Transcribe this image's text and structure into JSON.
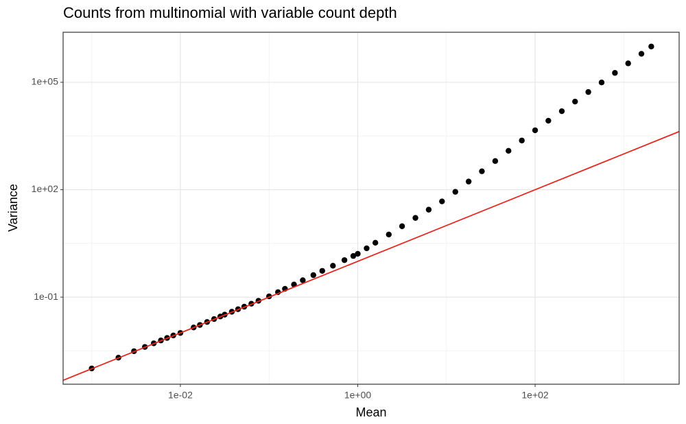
{
  "chart_data": {
    "type": "scatter",
    "title": "Counts from multinomial with variable count depth",
    "x_label": "Mean",
    "y_label": "Variance",
    "log_x": true,
    "log_y": true,
    "grid": true,
    "color": "#000000",
    "xlim": [
      0.000476,
      4207
    ],
    "ylim": [
      0.00037,
      2500000
    ],
    "xticks": [
      {
        "value": 0.01,
        "label": "1e-02"
      },
      {
        "value": 1,
        "label": "1e+00"
      },
      {
        "value": 100,
        "label": "1e+02"
      }
    ],
    "yticks": [
      {
        "value": 0.1,
        "label": "1e-01"
      },
      {
        "value": 100,
        "label": "1e+02"
      },
      {
        "value": 100000,
        "label": "1e+05"
      }
    ],
    "reference_line": {
      "slope": 1,
      "intercept": 0,
      "color": "#e8251f"
    },
    "x": [
      0.001,
      0.002,
      0.003,
      0.00398,
      0.00501,
      0.00603,
      0.00708,
      0.00832,
      0.01,
      0.0141,
      0.0166,
      0.02,
      0.024,
      0.0282,
      0.0316,
      0.038,
      0.0447,
      0.0525,
      0.0631,
      0.0759,
      0.1,
      0.126,
      0.151,
      0.191,
      0.24,
      0.316,
      0.398,
      0.525,
      0.708,
      0.891,
      1,
      1.26,
      1.58,
      2.24,
      3.16,
      4.47,
      6.31,
      8.91,
      12.6,
      17.8,
      25.1,
      35.5,
      50.1,
      70.8,
      100,
      141,
      200,
      282,
      398,
      562,
      794,
      1120,
      1580,
      2040
    ],
    "values": [
      0.00102,
      0.00204,
      0.00309,
      0.00407,
      0.00513,
      0.00617,
      0.00724,
      0.00851,
      0.01,
      0.0142,
      0.0167,
      0.0202,
      0.0244,
      0.0288,
      0.0324,
      0.0391,
      0.046,
      0.0542,
      0.0655,
      0.0791,
      0.105,
      0.138,
      0.171,
      0.225,
      0.296,
      0.412,
      0.542,
      0.753,
      1.08,
      1.41,
      1.62,
      2.31,
      3.3,
      5.61,
      9.55,
      16.3,
      27.7,
      47.1,
      87.3,
      169,
      327,
      632,
      1220,
      2370,
      4570,
      8450,
      15600,
      28900,
      53500,
      98900,
      183000,
      338000,
      625000,
      1000000
    ]
  }
}
